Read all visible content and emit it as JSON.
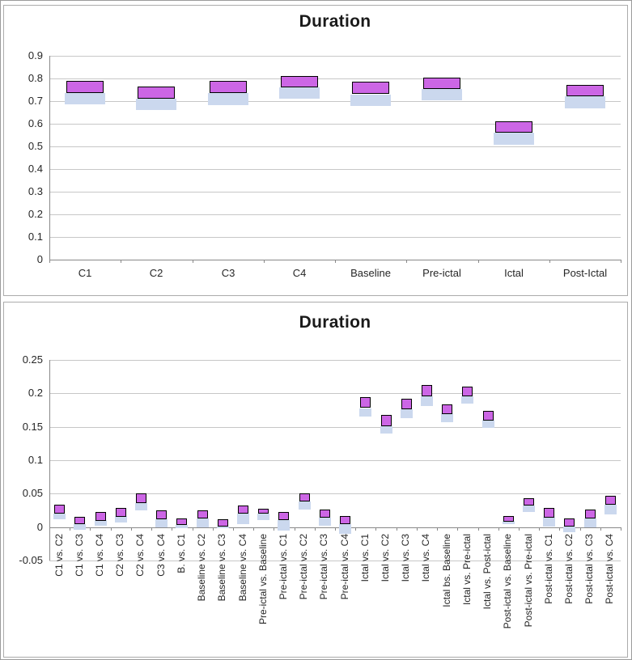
{
  "chart_data": [
    {
      "type": "bar",
      "subtype": "floating-range-stacked",
      "title": "Duration",
      "grid": true,
      "legend": "none",
      "x_label_rotation": 0,
      "ylim": [
        0,
        0.9
      ],
      "yticks": [
        {
          "value": 0.9,
          "label": "0.9"
        },
        {
          "value": 0.8,
          "label": "0.8"
        },
        {
          "value": 0.7,
          "label": "0.7"
        },
        {
          "value": 0.6,
          "label": "0.6"
        },
        {
          "value": 0.5,
          "label": "0.5"
        },
        {
          "value": 0.4,
          "label": "0.4"
        },
        {
          "value": 0.3,
          "label": "0.3"
        },
        {
          "value": 0.2,
          "label": "0.2"
        },
        {
          "value": 0.1,
          "label": "0.1"
        },
        {
          "value": 0.0,
          "label": "0"
        }
      ],
      "categories": [
        "C1",
        "C2",
        "C3",
        "C4",
        "Baseline",
        "Pre-ictal",
        "Ictal",
        "Post-Ictal"
      ],
      "series": [
        {
          "name": "lower-range",
          "color": "#cbd8ee",
          "ranges": [
            [
              0.685,
              0.735
            ],
            [
              0.66,
              0.71
            ],
            [
              0.68,
              0.735
            ],
            [
              0.71,
              0.76
            ],
            [
              0.68,
              0.73
            ],
            [
              0.705,
              0.755
            ],
            [
              0.505,
              0.56
            ],
            [
              0.665,
              0.72
            ]
          ]
        },
        {
          "name": "upper-range",
          "color": "#cc66e5",
          "border_color": "#000000",
          "ranges": [
            [
              0.735,
              0.79
            ],
            [
              0.71,
              0.765
            ],
            [
              0.735,
              0.79
            ],
            [
              0.76,
              0.81
            ],
            [
              0.73,
              0.785
            ],
            [
              0.755,
              0.805
            ],
            [
              0.56,
              0.61
            ],
            [
              0.72,
              0.77
            ]
          ]
        }
      ]
    },
    {
      "type": "bar",
      "subtype": "floating-range-stacked",
      "title": "Duration",
      "grid": true,
      "legend": "none",
      "x_label_rotation": 90,
      "ylim": [
        -0.05,
        0.25
      ],
      "yticks": [
        {
          "value": 0.25,
          "label": "0.25"
        },
        {
          "value": 0.2,
          "label": "0.2"
        },
        {
          "value": 0.15,
          "label": "0.15"
        },
        {
          "value": 0.1,
          "label": "0.1"
        },
        {
          "value": 0.05,
          "label": "0.05"
        },
        {
          "value": 0.0,
          "label": "0"
        },
        {
          "value": -0.05,
          "label": "-0.05"
        }
      ],
      "categories": [
        "C1 vs. C2",
        "C1 vs. C3",
        "C1 vs. C4",
        "C2 vs. C3",
        "C2 vs. C4",
        "C3 vs. C4",
        "B. vs. C1",
        "Baseline vs. C2",
        "Baseline vs. C3",
        "Baseline vs. C4",
        "Pre-ictal vs. Baseline",
        "Pre-ictal vs. C1",
        "Pre-ictal vs. C2",
        "Pre-ictal vs. C3",
        "Pre-ictal vs. C4",
        "Ictal vs. C1",
        "Ictal vs. C2",
        "Ictal vs. C3",
        "Ictal vs. C4",
        "Ictal bs. Baseline",
        "Ictal vs. Pre-ictal",
        "Ictal vs. Post-ictal",
        "Post-ictal vs. Baseline",
        "Post-ictal vs. Pre-ictal",
        "Post-ictal vs. C1",
        "Post-ictal vs. C2",
        "Post-ictal vs. C3",
        "Post-ictal vs. C4"
      ],
      "series": [
        {
          "name": "lower-range",
          "color": "#cbd8ee",
          "ranges": [
            [
              0.012,
              0.02
            ],
            [
              -0.004,
              0.004
            ],
            [
              0.002,
              0.01
            ],
            [
              0.006,
              0.016
            ],
            [
              0.025,
              0.036
            ],
            [
              0.0,
              0.012
            ],
            [
              -0.002,
              0.003
            ],
            [
              0.0,
              0.013
            ],
            [
              -0.002,
              0.001
            ],
            [
              0.004,
              0.02
            ],
            [
              0.01,
              0.02
            ],
            [
              -0.005,
              0.011
            ],
            [
              0.026,
              0.038
            ],
            [
              0.002,
              0.014
            ],
            [
              -0.011,
              0.004
            ],
            [
              0.166,
              0.178
            ],
            [
              0.14,
              0.151
            ],
            [
              0.163,
              0.176
            ],
            [
              0.182,
              0.196
            ],
            [
              0.157,
              0.17
            ],
            [
              0.185,
              0.196
            ],
            [
              0.148,
              0.16
            ],
            [
              0.004,
              0.009
            ],
            [
              0.022,
              0.032
            ],
            [
              0.0,
              0.015
            ],
            [
              -0.007,
              0.001
            ],
            [
              0.0,
              0.013
            ],
            [
              0.02,
              0.034
            ]
          ]
        },
        {
          "name": "upper-range",
          "color": "#cc66e5",
          "border_color": "#000000",
          "ranges": [
            [
              0.02,
              0.033
            ],
            [
              0.004,
              0.015
            ],
            [
              0.01,
              0.023
            ],
            [
              0.016,
              0.029
            ],
            [
              0.036,
              0.05
            ],
            [
              0.012,
              0.025
            ],
            [
              0.003,
              0.013
            ],
            [
              0.013,
              0.025
            ],
            [
              0.001,
              0.012
            ],
            [
              0.02,
              0.032
            ],
            [
              0.02,
              0.027
            ],
            [
              0.011,
              0.023
            ],
            [
              0.038,
              0.05
            ],
            [
              0.014,
              0.026
            ],
            [
              0.004,
              0.016
            ],
            [
              0.178,
              0.194
            ],
            [
              0.151,
              0.168
            ],
            [
              0.176,
              0.192
            ],
            [
              0.196,
              0.213
            ],
            [
              0.17,
              0.184
            ],
            [
              0.196,
              0.21
            ],
            [
              0.16,
              0.174
            ],
            [
              0.009,
              0.017
            ],
            [
              0.032,
              0.043
            ],
            [
              0.015,
              0.029
            ],
            [
              0.001,
              0.013
            ],
            [
              0.013,
              0.026
            ],
            [
              0.034,
              0.047
            ]
          ]
        }
      ],
      "colors": {
        "lower_fill": "#cbd8ee",
        "upper_fill": "#cc66e5",
        "upper_border": "#000000",
        "gridline": "#c7c7c7",
        "axis": "#898989",
        "text": "#262626"
      }
    }
  ]
}
